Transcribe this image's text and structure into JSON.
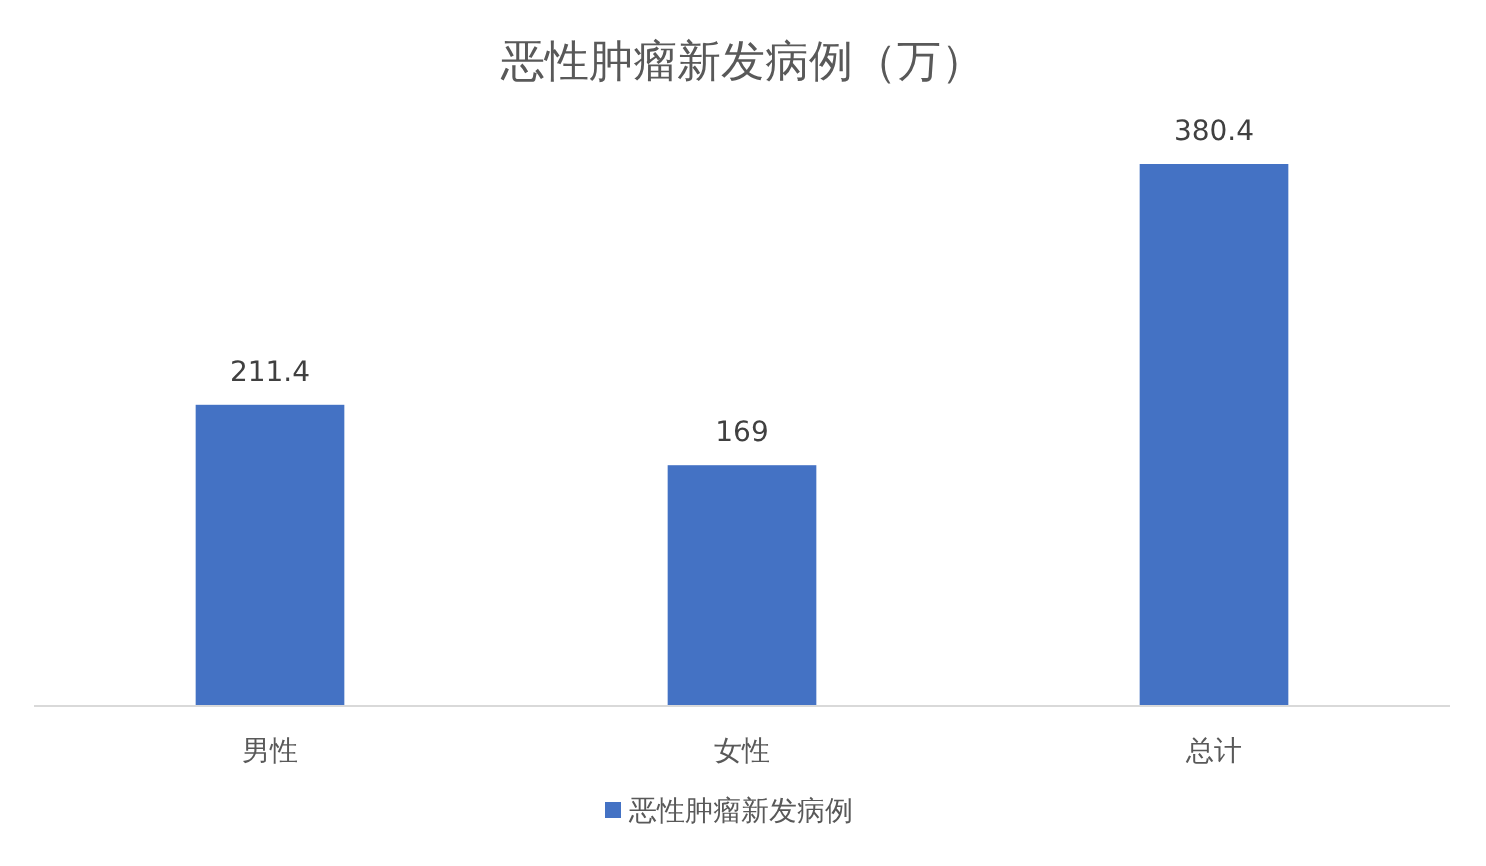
{
  "chart_data": {
    "type": "bar",
    "title": "恶性肿瘤新发病例（万）",
    "categories": [
      "男性",
      "女性",
      "总计"
    ],
    "series": [
      {
        "name": "恶性肿瘤新发病例",
        "color": "#4472c4",
        "values": [
          211.4,
          169,
          380.4
        ]
      }
    ],
    "data_labels": true,
    "legend": "bottom"
  }
}
